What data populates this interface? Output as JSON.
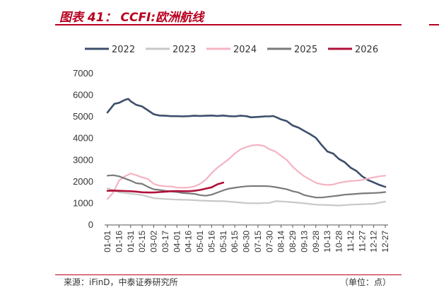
{
  "header": {
    "title": "图表 41： CCFI:欧洲航线"
  },
  "footer": {
    "source": "来源：iFinD，中泰证券研究所",
    "unit": "（单位：点）"
  },
  "chart_data": {
    "type": "line",
    "title": "图表 41： CCFI:欧洲航线",
    "xlabel": "",
    "ylabel": "",
    "ylim": [
      0,
      7000
    ],
    "yticks": [
      0,
      1000,
      2000,
      3000,
      4000,
      5000,
      6000,
      7000
    ],
    "categories": [
      "01-01",
      "01-16",
      "01-31",
      "02-15",
      "03-02",
      "03-17",
      "04-01",
      "04-16",
      "05-01",
      "05-16",
      "05-31",
      "06-15",
      "06-30",
      "07-15",
      "07-30",
      "08-14",
      "08-29",
      "09-13",
      "09-28",
      "10-13",
      "10-28",
      "11-12",
      "11-27",
      "12-12",
      "12-27"
    ],
    "legend_position": "top",
    "grid": false,
    "series": [
      {
        "name": "2022",
        "color": "#3d4f6b",
        "points": [
          [
            0,
            5200
          ],
          [
            0.6,
            5600
          ],
          [
            1,
            5650
          ],
          [
            1.5,
            5780
          ],
          [
            1.8,
            5830
          ],
          [
            2,
            5720
          ],
          [
            2.5,
            5550
          ],
          [
            3,
            5480
          ],
          [
            3.5,
            5300
          ],
          [
            4,
            5120
          ],
          [
            4.5,
            5060
          ],
          [
            5,
            5050
          ],
          [
            5.5,
            5030
          ],
          [
            6,
            5030
          ],
          [
            6.5,
            5020
          ],
          [
            7,
            5030
          ],
          [
            7.5,
            5050
          ],
          [
            8,
            5040
          ],
          [
            8.5,
            5050
          ],
          [
            9,
            5060
          ],
          [
            9.5,
            5040
          ],
          [
            10,
            5060
          ],
          [
            10.5,
            5030
          ],
          [
            11,
            5020
          ],
          [
            11.5,
            5050
          ],
          [
            12,
            5030
          ],
          [
            12.4,
            4980
          ],
          [
            12.8,
            4990
          ],
          [
            13.2,
            5000
          ],
          [
            13.6,
            5020
          ],
          [
            14,
            5020
          ],
          [
            14.3,
            5040
          ],
          [
            14.6,
            4980
          ],
          [
            15,
            4880
          ],
          [
            15.5,
            4800
          ],
          [
            16,
            4600
          ],
          [
            16.5,
            4500
          ],
          [
            17,
            4350
          ],
          [
            17.5,
            4200
          ],
          [
            18,
            4030
          ],
          [
            18.5,
            3700
          ],
          [
            19,
            3400
          ],
          [
            19.5,
            3300
          ],
          [
            20,
            3050
          ],
          [
            20.5,
            2900
          ],
          [
            21,
            2650
          ],
          [
            21.5,
            2500
          ],
          [
            22,
            2250
          ],
          [
            22.5,
            2080
          ],
          [
            23,
            1970
          ],
          [
            23.5,
            1850
          ],
          [
            24,
            1760
          ]
        ]
      },
      {
        "name": "2023",
        "color": "#c8c8c8",
        "points": [
          [
            0,
            1700
          ],
          [
            1,
            1510
          ],
          [
            2,
            1450
          ],
          [
            3,
            1380
          ],
          [
            4,
            1240
          ],
          [
            5,
            1200
          ],
          [
            6,
            1170
          ],
          [
            7,
            1160
          ],
          [
            8,
            1130
          ],
          [
            9,
            1110
          ],
          [
            10,
            1100
          ],
          [
            11,
            1060
          ],
          [
            12,
            1010
          ],
          [
            13,
            1000
          ],
          [
            14,
            1020
          ],
          [
            14.5,
            1100
          ],
          [
            15,
            1090
          ],
          [
            16,
            1050
          ],
          [
            17,
            1000
          ],
          [
            18,
            940
          ],
          [
            19,
            920
          ],
          [
            20,
            900
          ],
          [
            21,
            940
          ],
          [
            22,
            960
          ],
          [
            23,
            980
          ],
          [
            24,
            1080
          ]
        ]
      },
      {
        "name": "2024",
        "color": "#f4b3c2",
        "points": [
          [
            0,
            1200
          ],
          [
            0.5,
            1500
          ],
          [
            1,
            2050
          ],
          [
            1.5,
            2250
          ],
          [
            2,
            2380
          ],
          [
            2.5,
            2300
          ],
          [
            3,
            2200
          ],
          [
            3.5,
            2130
          ],
          [
            4,
            1900
          ],
          [
            4.5,
            1820
          ],
          [
            5,
            1790
          ],
          [
            5.5,
            1780
          ],
          [
            6,
            1730
          ],
          [
            6.5,
            1720
          ],
          [
            7,
            1730
          ],
          [
            7.5,
            1780
          ],
          [
            8,
            1900
          ],
          [
            8.5,
            2100
          ],
          [
            9,
            2400
          ],
          [
            9.5,
            2650
          ],
          [
            10,
            2850
          ],
          [
            10.5,
            3050
          ],
          [
            11,
            3300
          ],
          [
            11.5,
            3500
          ],
          [
            12,
            3600
          ],
          [
            12.5,
            3680
          ],
          [
            13,
            3700
          ],
          [
            13.5,
            3660
          ],
          [
            14,
            3500
          ],
          [
            14.5,
            3400
          ],
          [
            15,
            3200
          ],
          [
            15.5,
            3000
          ],
          [
            16,
            2700
          ],
          [
            16.5,
            2450
          ],
          [
            17,
            2250
          ],
          [
            17.5,
            2100
          ],
          [
            18,
            1950
          ],
          [
            18.5,
            1880
          ],
          [
            19,
            1850
          ],
          [
            19.5,
            1870
          ],
          [
            20,
            1950
          ],
          [
            20.5,
            2000
          ],
          [
            21,
            2030
          ],
          [
            21.5,
            2050
          ],
          [
            22,
            2080
          ],
          [
            22.5,
            2150
          ],
          [
            23,
            2200
          ],
          [
            23.5,
            2250
          ],
          [
            24,
            2280
          ]
        ]
      },
      {
        "name": "2025",
        "color": "#7a7a7a",
        "points": [
          [
            0,
            2280
          ],
          [
            0.5,
            2300
          ],
          [
            1,
            2250
          ],
          [
            1.5,
            2150
          ],
          [
            2,
            2050
          ],
          [
            2.5,
            1930
          ],
          [
            3,
            1900
          ],
          [
            3.5,
            1760
          ],
          [
            4,
            1650
          ],
          [
            4.5,
            1620
          ],
          [
            5,
            1580
          ],
          [
            5.5,
            1550
          ],
          [
            6,
            1520
          ],
          [
            6.5,
            1480
          ],
          [
            7,
            1460
          ],
          [
            7.5,
            1440
          ],
          [
            8,
            1380
          ],
          [
            8.5,
            1350
          ],
          [
            9,
            1400
          ],
          [
            9.5,
            1500
          ],
          [
            10,
            1600
          ],
          [
            10.5,
            1680
          ],
          [
            11,
            1720
          ],
          [
            11.5,
            1760
          ],
          [
            12,
            1790
          ],
          [
            12.5,
            1800
          ],
          [
            13,
            1800
          ],
          [
            13.5,
            1800
          ],
          [
            14,
            1790
          ],
          [
            14.5,
            1750
          ],
          [
            15,
            1700
          ],
          [
            15.5,
            1650
          ],
          [
            16,
            1560
          ],
          [
            16.5,
            1500
          ],
          [
            17,
            1380
          ],
          [
            17.5,
            1320
          ],
          [
            18,
            1270
          ],
          [
            18.5,
            1270
          ],
          [
            19,
            1300
          ],
          [
            19.5,
            1330
          ],
          [
            20,
            1360
          ],
          [
            20.5,
            1400
          ],
          [
            21,
            1420
          ],
          [
            21.5,
            1440
          ],
          [
            22,
            1460
          ],
          [
            22.5,
            1470
          ],
          [
            23,
            1480
          ],
          [
            23.5,
            1490
          ],
          [
            24,
            1520
          ]
        ]
      },
      {
        "name": "2026",
        "color": "#b0103a",
        "points": [
          [
            0,
            1580
          ],
          [
            0.5,
            1590
          ],
          [
            1,
            1580
          ],
          [
            1.5,
            1570
          ],
          [
            2,
            1560
          ],
          [
            2.5,
            1540
          ],
          [
            3,
            1510
          ],
          [
            3.5,
            1500
          ],
          [
            4,
            1500
          ],
          [
            4.5,
            1520
          ],
          [
            5,
            1540
          ],
          [
            5.5,
            1560
          ],
          [
            6,
            1570
          ],
          [
            6.5,
            1560
          ],
          [
            7,
            1560
          ],
          [
            7.5,
            1580
          ],
          [
            8,
            1620
          ],
          [
            8.5,
            1680
          ],
          [
            9,
            1740
          ],
          [
            9.5,
            1880
          ],
          [
            10,
            1960
          ]
        ]
      }
    ]
  }
}
